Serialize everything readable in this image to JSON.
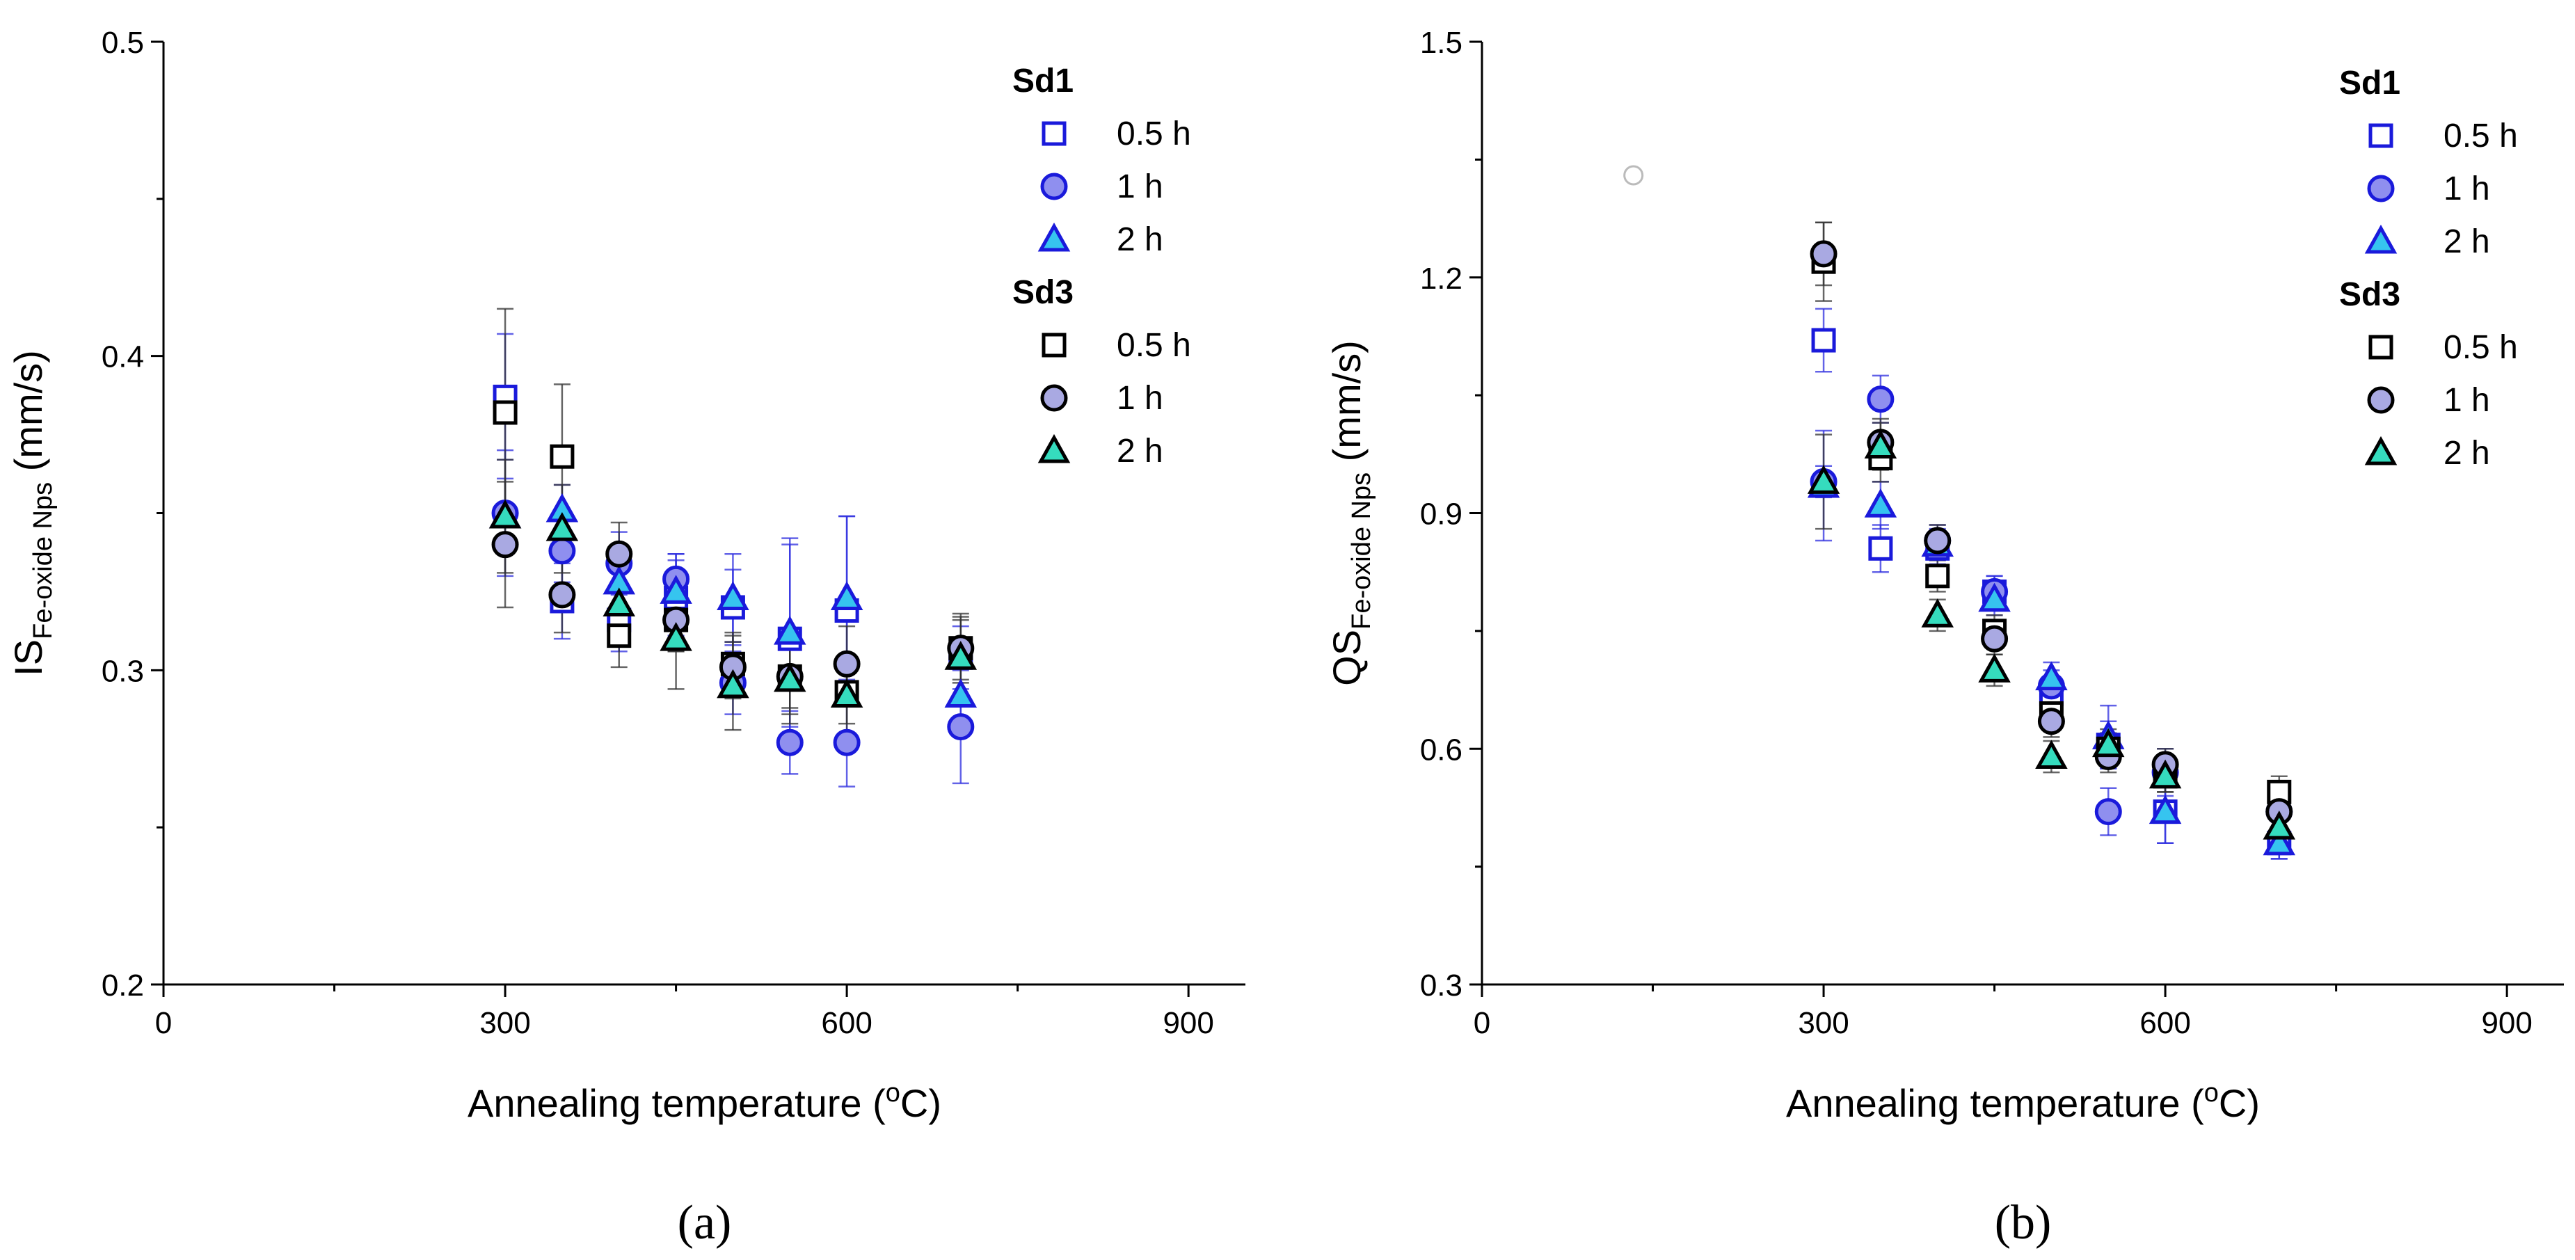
{
  "chart_data": [
    {
      "type": "scatter",
      "panel_label": "(a)",
      "xlabel": "Annealing temperature (",
      "xlabel_sup": "o",
      "xlabel_end": "C)",
      "ylabel_main": "IS",
      "ylabel_sub": "Fe-oxide Nps",
      "ylabel_unit": " (mm/s)",
      "xlim": [
        0,
        950
      ],
      "ylim": [
        0.2,
        0.5
      ],
      "xticks": [
        0,
        300,
        600,
        900
      ],
      "xtick_labels": [
        "0",
        "300",
        "600",
        "900"
      ],
      "yticks": [
        0.2,
        0.3,
        0.4,
        0.5
      ],
      "ytick_labels": [
        "0.2",
        "0.3",
        "0.4",
        "0.5"
      ],
      "legend_position": "top-right",
      "groups": [
        {
          "name": "Sd1",
          "series": [
            {
              "name": "0.5 h",
              "marker": "square",
              "x": [
                300,
                350,
                400,
                450,
                500,
                550,
                600,
                700
              ],
              "y": [
                0.387,
                0.322,
                0.316,
                0.323,
                0.32,
                0.31,
                0.319,
                0.304
              ],
              "err": [
                0.02,
                0.012,
                0.01,
                0.012,
                0.012,
                0.03,
                0.03,
                0.01
              ]
            },
            {
              "name": "1 h",
              "marker": "circle",
              "x": [
                300,
                350,
                400,
                450,
                500,
                550,
                600,
                700
              ],
              "y": [
                0.35,
                0.338,
                0.334,
                0.329,
                0.296,
                0.277,
                0.277,
                0.282
              ],
              "err": [
                0.02,
                0.01,
                0.01,
                0.008,
                0.01,
                0.01,
                0.014,
                0.018
              ]
            },
            {
              "name": "2 h",
              "marker": "triangle",
              "x": [
                300,
                350,
                400,
                450,
                500,
                550,
                600,
                700
              ],
              "y": [
                0.349,
                0.351,
                0.328,
                0.325,
                0.323,
                0.312,
                0.323,
                0.292
              ],
              "err": [
                0.012,
                0.008,
                0.01,
                0.012,
                0.014,
                0.03,
                0.026,
                0.01
              ]
            }
          ]
        },
        {
          "name": "Sd3",
          "series": [
            {
              "name": "0.5 h",
              "marker": "square",
              "x": [
                300,
                350,
                400,
                450,
                500,
                550,
                600,
                700
              ],
              "y": [
                0.382,
                0.368,
                0.311,
                0.316,
                0.302,
                0.298,
                0.293,
                0.307
              ],
              "err": [
                0.033,
                0.023,
                0.01,
                0.01,
                0.01,
                0.012,
                0.01,
                0.011
              ]
            },
            {
              "name": "1 h",
              "marker": "circle",
              "x": [
                300,
                350,
                400,
                450,
                500,
                550,
                600,
                700
              ],
              "y": [
                0.34,
                0.324,
                0.337,
                0.316,
                0.301,
                0.298,
                0.302,
                0.307
              ],
              "err": [
                0.02,
                0.012,
                0.01,
                0.01,
                0.01,
                0.01,
                0.012,
                0.01
              ]
            },
            {
              "name": "2 h",
              "marker": "triangle",
              "x": [
                300,
                350,
                400,
                450,
                500,
                550,
                600,
                700
              ],
              "y": [
                0.349,
                0.345,
                0.321,
                0.31,
                0.295,
                0.297,
                0.292,
                0.304
              ],
              "err": [
                0.018,
                0.014,
                0.01,
                0.016,
                0.014,
                0.014,
                0.012,
                0.012
              ]
            }
          ]
        }
      ]
    },
    {
      "type": "scatter",
      "panel_label": "(b)",
      "xlabel": "Annealing temperature (",
      "xlabel_sup": "o",
      "xlabel_end": "C)",
      "ylabel_main": "QS",
      "ylabel_sub": "Fe-oxide Nps",
      "ylabel_unit": " (mm/s)",
      "xlim": [
        0,
        950
      ],
      "ylim": [
        0.3,
        1.5
      ],
      "xticks": [
        0,
        300,
        600,
        900
      ],
      "xtick_labels": [
        "0",
        "300",
        "600",
        "900"
      ],
      "yticks": [
        0.3,
        0.6,
        0.9,
        1.2,
        1.5
      ],
      "ytick_labels": [
        "0.3",
        "0.6",
        "0.9",
        "1.2",
        "1.5"
      ],
      "legend_position": "top-right",
      "stray_point": {
        "x": 133,
        "y": 1.33
      },
      "groups": [
        {
          "name": "Sd1",
          "series": [
            {
              "name": "0.5 h",
              "marker": "square",
              "x": [
                300,
                350,
                400,
                450,
                500,
                550,
                600,
                700
              ],
              "y": [
                1.12,
                0.855,
                0.855,
                0.8,
                0.67,
                0.605,
                0.52,
                0.48
              ],
              "err": [
                0.04,
                0.03,
                0.02,
                0.02,
                0.02,
                0.03,
                0.04,
                0.02
              ]
            },
            {
              "name": "1 h",
              "marker": "circle",
              "x": [
                300,
                350,
                400,
                450,
                500,
                550,
                600,
                700
              ],
              "y": [
                0.94,
                1.045,
                0.865,
                0.8,
                0.68,
                0.52,
                0.57,
                0.52
              ],
              "err": [
                0.02,
                0.03,
                0.02,
                0.02,
                0.02,
                0.03,
                0.03,
                0.02
              ]
            },
            {
              "name": "2 h",
              "marker": "triangle",
              "x": [
                300,
                350,
                400,
                450,
                500,
                550,
                600,
                700
              ],
              "y": [
                0.935,
                0.91,
                0.86,
                0.79,
                0.69,
                0.615,
                0.52,
                0.48
              ],
              "err": [
                0.07,
                0.03,
                0.02,
                0.02,
                0.02,
                0.04,
                0.04,
                0.02
              ]
            }
          ]
        },
        {
          "name": "Sd3",
          "series": [
            {
              "name": "0.5 h",
              "marker": "square",
              "x": [
                300,
                350,
                400,
                450,
                500,
                550,
                600,
                700
              ],
              "y": [
                1.22,
                0.97,
                0.82,
                0.75,
                0.645,
                0.6,
                0.565,
                0.545
              ],
              "err": [
                0.05,
                0.03,
                0.02,
                0.02,
                0.02,
                0.02,
                0.02,
                0.02
              ]
            },
            {
              "name": "1 h",
              "marker": "circle",
              "x": [
                300,
                350,
                400,
                450,
                500,
                550,
                600,
                700
              ],
              "y": [
                1.23,
                0.99,
                0.865,
                0.74,
                0.635,
                0.59,
                0.58,
                0.52
              ],
              "err": [
                0.04,
                0.03,
                0.02,
                0.02,
                0.02,
                0.02,
                0.02,
                0.02
              ]
            },
            {
              "name": "2 h",
              "marker": "triangle",
              "x": [
                300,
                350,
                400,
                450,
                500,
                550,
                600,
                700
              ],
              "y": [
                0.94,
                0.985,
                0.77,
                0.7,
                0.59,
                0.605,
                0.565,
                0.5
              ],
              "err": [
                0.06,
                0.03,
                0.02,
                0.02,
                0.02,
                0.02,
                0.02,
                0.02
              ]
            }
          ]
        }
      ]
    }
  ],
  "colors": {
    "sd1_stroke": "#1a1adb",
    "sd1_circle_fill": "#8f8fef",
    "sd1_triangle_fill": "#36c4ef",
    "sd3_stroke": "#000000",
    "sd3_circle_fill": "#a9a9e2",
    "sd3_triangle_fill": "#35dcbe",
    "errorbar_sd1": "#2e2ee0",
    "errorbar_sd3": "#333333"
  }
}
